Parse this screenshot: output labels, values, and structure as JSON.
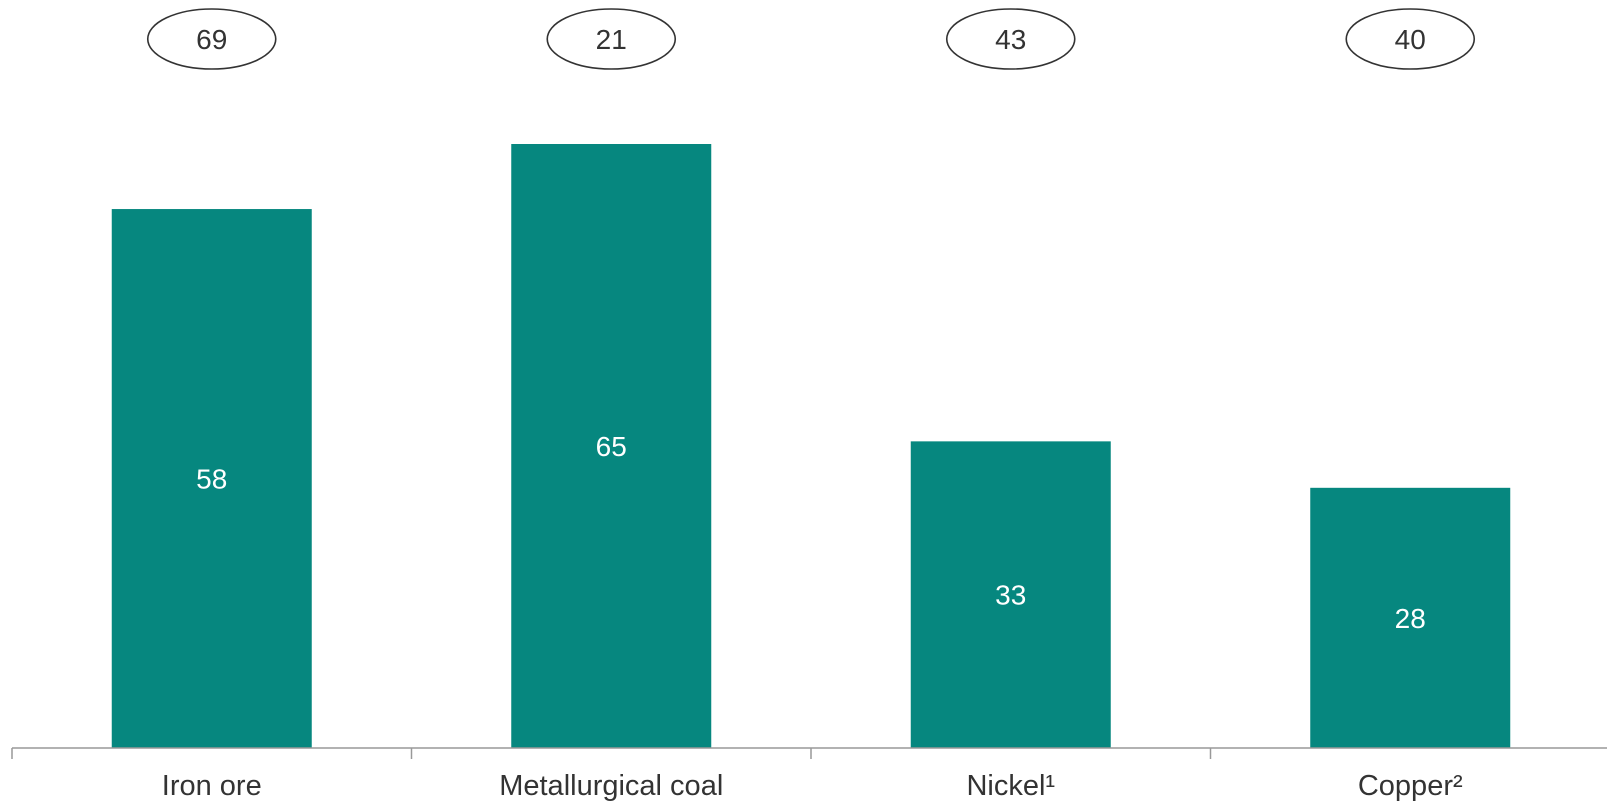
{
  "chart_data": {
    "type": "bar",
    "categories": [
      "Iron ore",
      "Metallurgical coal",
      "Nickel¹",
      "Copper²"
    ],
    "values": [
      58,
      65,
      33,
      28
    ],
    "annotations": [
      "69",
      "21",
      "43",
      "40"
    ],
    "title": "",
    "xlabel": "",
    "ylabel": "",
    "ylim": [
      0,
      70
    ],
    "grid": false,
    "bar_color": "#06877F"
  }
}
